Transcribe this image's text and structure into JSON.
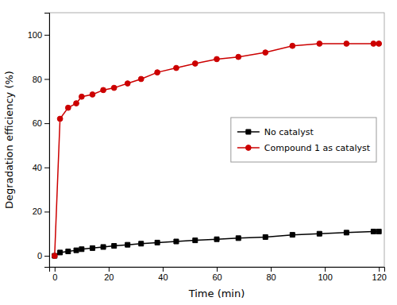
{
  "chart_data": {
    "type": "line",
    "xlabel": "Time (min)",
    "ylabel": "Degradation efficiency (%)",
    "x": [
      0,
      2,
      5,
      8,
      10,
      14,
      18,
      22,
      27,
      32,
      38,
      45,
      52,
      60,
      68,
      78,
      88,
      98,
      108,
      118,
      120
    ],
    "series": [
      {
        "name": "No catalyst",
        "color": "#000000",
        "marker": "square",
        "values": [
          0,
          1.5,
          2.0,
          2.5,
          3.0,
          3.5,
          4.0,
          4.5,
          5.0,
          5.5,
          6.0,
          6.5,
          7.0,
          7.5,
          8.0,
          8.5,
          9.5,
          10.0,
          10.5,
          11.0,
          11.0
        ]
      },
      {
        "name": "Compound 1 as catalyst",
        "color": "#cc0000",
        "marker": "circle",
        "values": [
          0,
          62,
          67,
          69,
          72,
          73,
          75,
          76,
          78,
          80,
          83,
          85,
          87,
          89,
          90,
          92,
          95,
          96,
          96,
          96,
          96
        ]
      }
    ],
    "xlim": [
      -2,
      122
    ],
    "ylim": [
      -5,
      110
    ],
    "xticks": [
      0,
      20,
      40,
      60,
      80,
      100,
      120
    ],
    "yticks": [
      0,
      20,
      40,
      60,
      80,
      100
    ],
    "grid": false,
    "legend": "right"
  }
}
